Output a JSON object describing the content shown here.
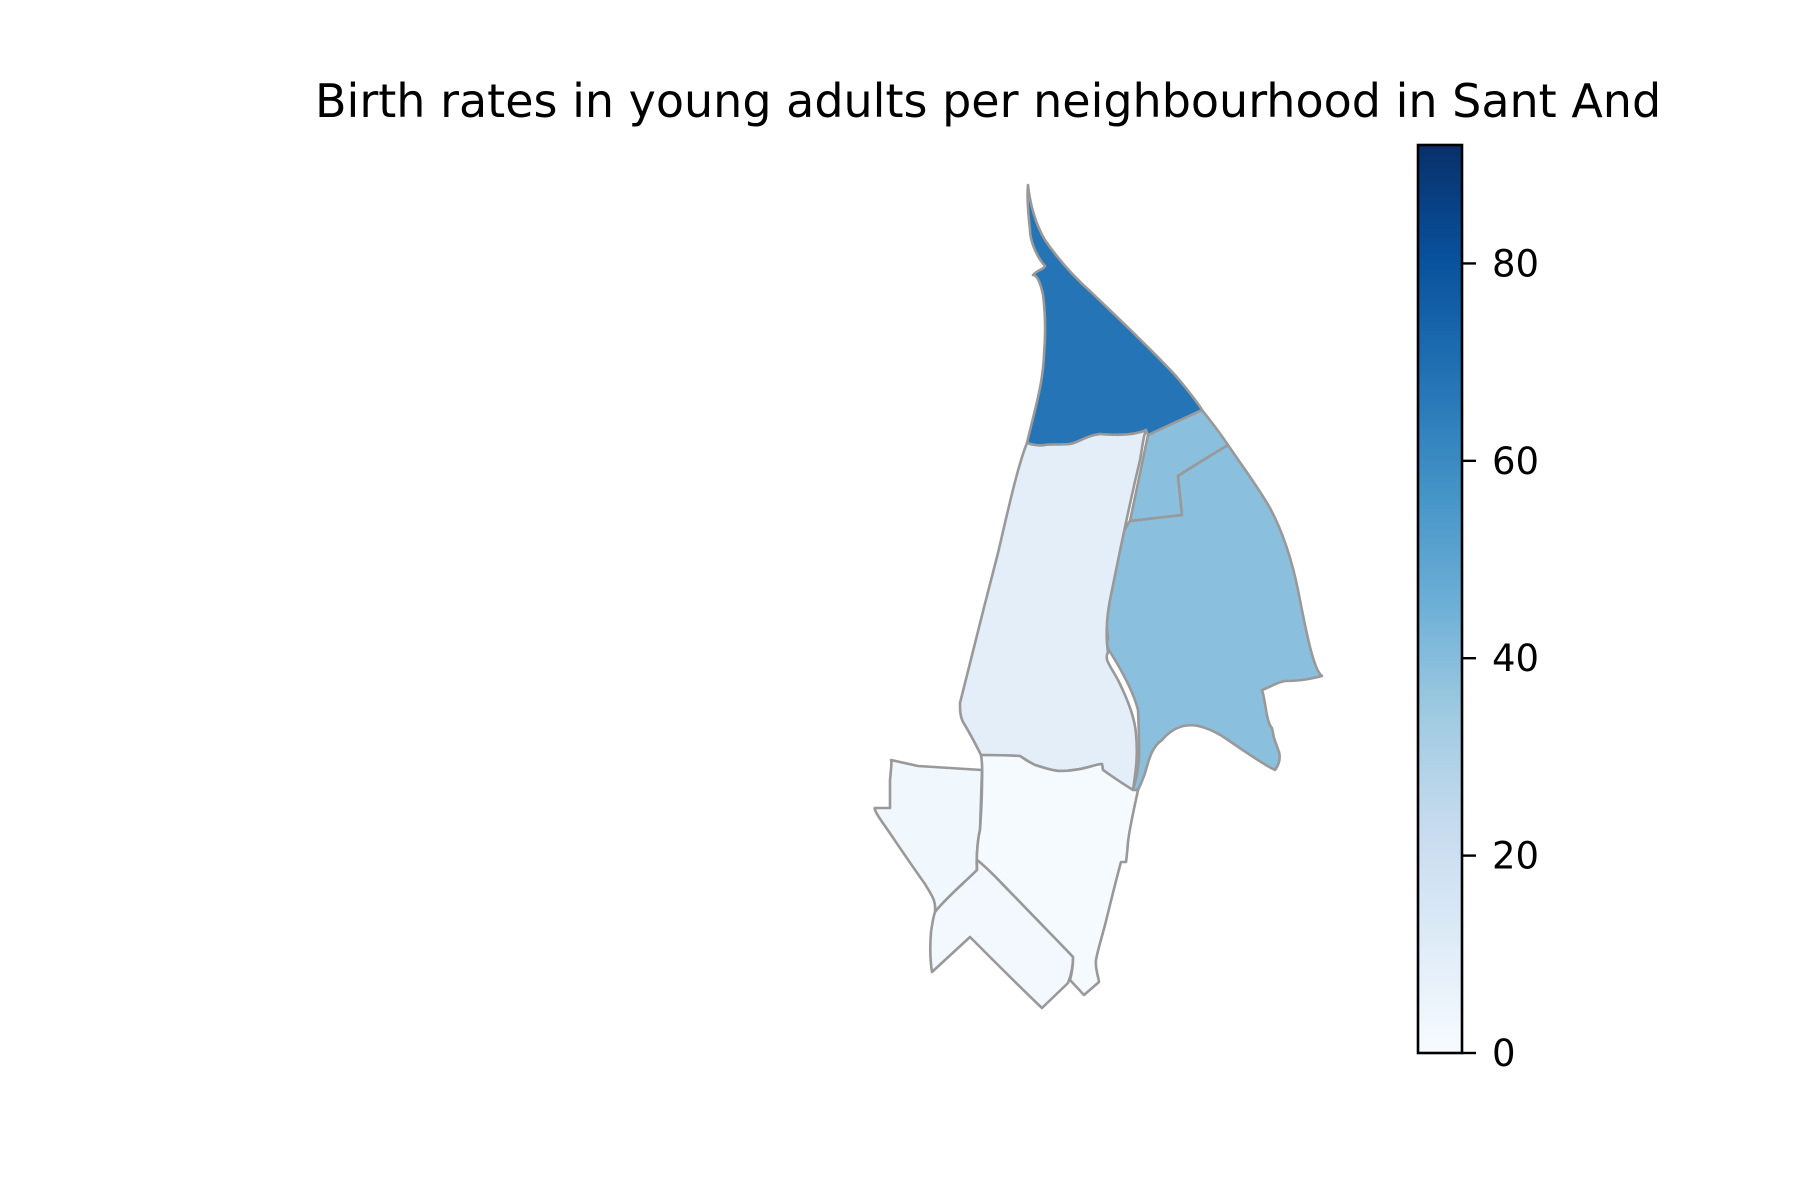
{
  "map": {
    "title": "Birth rates in young adults per neighbourhood in Sant And",
    "colormap": "Blues",
    "colormap_stops": [
      "#f7fbff",
      "#deebf7",
      "#c6dbef",
      "#9ecae1",
      "#6baed6",
      "#4292c6",
      "#2171b5",
      "#08519c",
      "#08306b"
    ],
    "border_color": "#999999",
    "regions": [
      {
        "id": "north",
        "value": 68
      },
      {
        "id": "east-small",
        "value": 39
      },
      {
        "id": "east-large",
        "value": 39
      },
      {
        "id": "center",
        "value": 9
      },
      {
        "id": "south-west",
        "value": 3
      },
      {
        "id": "south-center",
        "value": 1
      },
      {
        "id": "south-bottom",
        "value": 2
      }
    ]
  },
  "colorbar": {
    "min": 0,
    "max": 92,
    "ticks": [
      {
        "value": 0,
        "label": "0"
      },
      {
        "value": 20,
        "label": "20"
      },
      {
        "value": 40,
        "label": "40"
      },
      {
        "value": 60,
        "label": "60"
      },
      {
        "value": 80,
        "label": "80"
      }
    ]
  }
}
